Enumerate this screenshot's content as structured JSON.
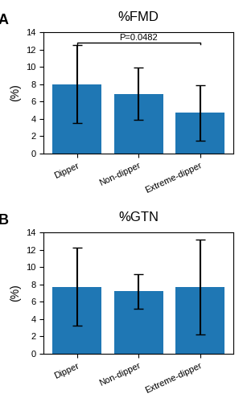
{
  "chart_data": [
    {
      "type": "bar",
      "title": "%FMD",
      "panel_label": "A",
      "categories": [
        "Dipper",
        "Non-dipper",
        "Extreme-dipper"
      ],
      "values": [
        8.0,
        6.9,
        4.7
      ],
      "errors": [
        4.5,
        3.0,
        3.2
      ],
      "ylabel": "(%)",
      "ylim": [
        0,
        14
      ],
      "yticks": [
        0,
        2,
        4,
        6,
        8,
        10,
        12,
        14
      ],
      "annotations": [
        {
          "text": "P=0.0482",
          "from": "Dipper",
          "to": "Extreme-dipper"
        }
      ]
    },
    {
      "type": "bar",
      "title": "%GTN",
      "panel_label": "B",
      "categories": [
        "Dipper",
        "Non-dipper",
        "Extreme-dipper"
      ],
      "values": [
        7.7,
        7.2,
        7.7
      ],
      "errors": [
        4.5,
        2.0,
        5.5
      ],
      "ylabel": "(%)",
      "ylim": [
        0,
        14
      ],
      "yticks": [
        0,
        2,
        4,
        6,
        8,
        10,
        12,
        14
      ]
    }
  ]
}
